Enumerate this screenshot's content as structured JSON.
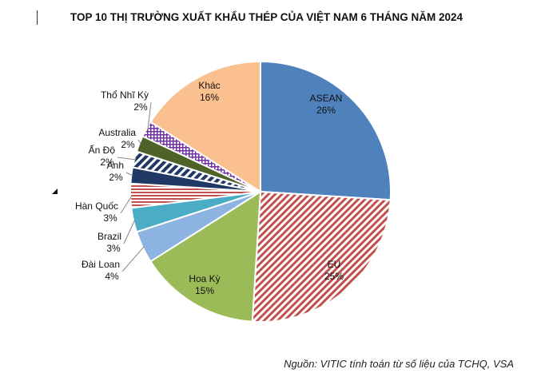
{
  "chart_data": {
    "type": "pie",
    "title": "TOP 10 THỊ TRƯỜNG XUẤT KHẨU THÉP CỦA VIỆT NAM 6 THÁNG NĂM 2024",
    "slices": [
      {
        "name": "ASEAN",
        "value": 26,
        "label": "26%",
        "color": "#4f81bd",
        "pattern": "solid"
      },
      {
        "name": "EU",
        "value": 25,
        "label": "25%",
        "color": "#c0504d",
        "pattern": "diagonal"
      },
      {
        "name": "Hoa Kỳ",
        "value": 15,
        "label": "15%",
        "color": "#9bbb59",
        "pattern": "solid"
      },
      {
        "name": "Đài Loan",
        "value": 4,
        "label": "4%",
        "color": "#8db3e2",
        "pattern": "solid"
      },
      {
        "name": "Brazil",
        "value": 3,
        "label": "3%",
        "color": "#4bacc6",
        "pattern": "solid"
      },
      {
        "name": "Hàn Quốc",
        "value": 3,
        "label": "3%",
        "color": "#c0504d",
        "pattern": "horizontal"
      },
      {
        "name": "Anh",
        "value": 2,
        "label": "2%",
        "color": "#1f3864",
        "pattern": "solid"
      },
      {
        "name": "Ấn Độ",
        "value": 2,
        "label": "2%",
        "color": "#1f3864",
        "pattern": "diagonal-wide"
      },
      {
        "name": "Australia",
        "value": 2,
        "label": "2%",
        "color": "#4f6228",
        "pattern": "solid"
      },
      {
        "name": "Thổ Nhĩ Kỳ",
        "value": 2,
        "label": "2%",
        "color": "#7030a0",
        "pattern": "grid"
      },
      {
        "name": "Khác",
        "value": 16,
        "label": "16%",
        "color": "#fac090",
        "pattern": "solid"
      }
    ]
  },
  "source": "Nguồn: VITIC tính toán từ số liệu của TCHQ, VSA"
}
